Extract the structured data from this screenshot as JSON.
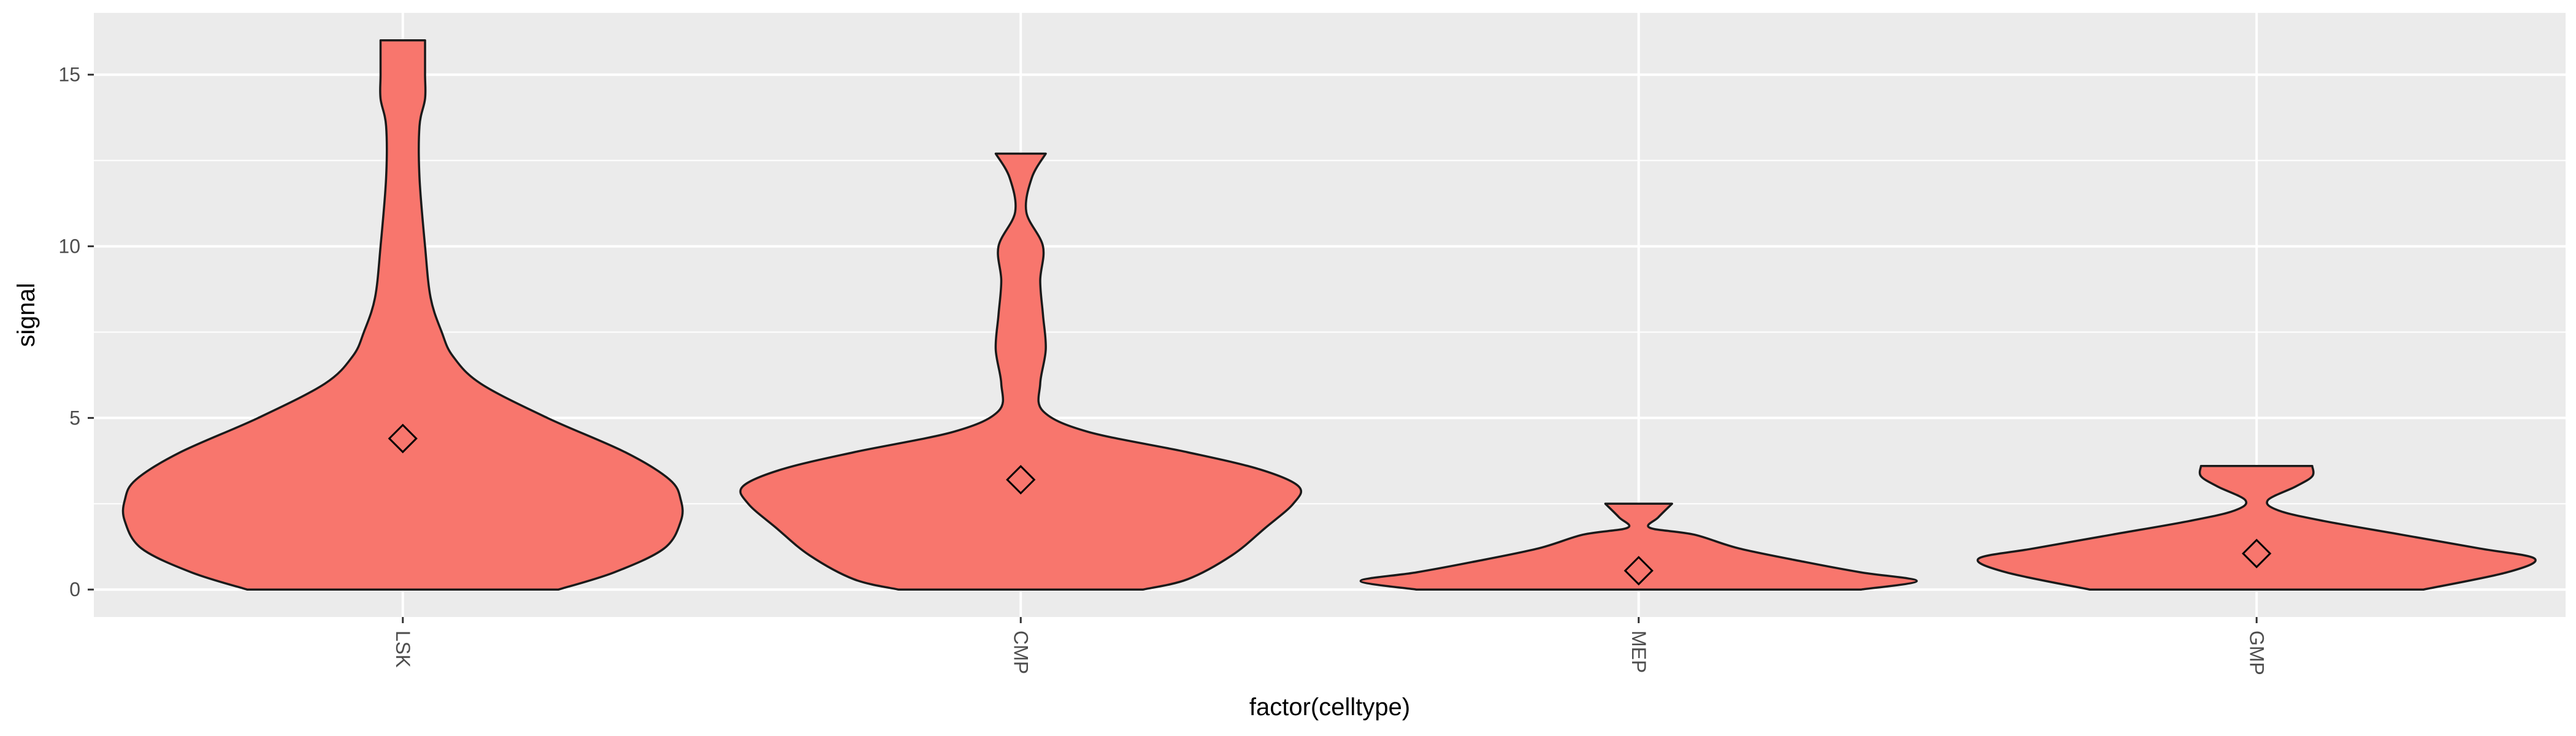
{
  "chart_data": {
    "type": "violin",
    "xlabel": "factor(celltype)",
    "ylabel": "signal",
    "categories": [
      "LSK",
      "CMP",
      "MEP",
      "GMP"
    ],
    "ylim": [
      -0.8,
      16.8
    ],
    "yticks": [
      0,
      5,
      10,
      15
    ],
    "grid": true,
    "colors": {
      "fill": "#F8766D",
      "outline": "#1a1a1a",
      "panel": "#EBEBEB",
      "grid": "#FFFFFF"
    },
    "series": [
      {
        "category": "LSK",
        "mean": 4.4,
        "profile": [
          [
            0,
            0.28
          ],
          [
            0.5,
            0.38
          ],
          [
            1.2,
            0.47
          ],
          [
            2.0,
            0.5
          ],
          [
            2.6,
            0.5
          ],
          [
            3.2,
            0.48
          ],
          [
            4.0,
            0.4
          ],
          [
            5.0,
            0.26
          ],
          [
            6.0,
            0.14
          ],
          [
            6.8,
            0.09
          ],
          [
            7.5,
            0.07
          ],
          [
            8.5,
            0.05
          ],
          [
            10.0,
            0.04
          ],
          [
            12.0,
            0.03
          ],
          [
            13.5,
            0.03
          ],
          [
            14.3,
            0.04
          ],
          [
            15.0,
            0.04
          ],
          [
            16.0,
            0.04
          ]
        ]
      },
      {
        "category": "CMP",
        "mean": 3.2,
        "profile": [
          [
            0,
            0.22
          ],
          [
            0.3,
            0.3
          ],
          [
            1.0,
            0.38
          ],
          [
            1.8,
            0.44
          ],
          [
            2.5,
            0.49
          ],
          [
            3.0,
            0.5
          ],
          [
            3.5,
            0.43
          ],
          [
            4.0,
            0.3
          ],
          [
            4.6,
            0.12
          ],
          [
            5.2,
            0.04
          ],
          [
            6.0,
            0.035
          ],
          [
            7.0,
            0.045
          ],
          [
            8.0,
            0.04
          ],
          [
            9.0,
            0.035
          ],
          [
            10.0,
            0.04
          ],
          [
            11.0,
            0.01
          ],
          [
            12.0,
            0.02
          ],
          [
            12.7,
            0.045
          ]
        ]
      },
      {
        "category": "MEP",
        "mean": 0.55,
        "profile": [
          [
            0,
            0.4
          ],
          [
            0.25,
            0.5
          ],
          [
            0.5,
            0.4
          ],
          [
            0.8,
            0.3
          ],
          [
            1.2,
            0.18
          ],
          [
            1.6,
            0.1
          ],
          [
            1.8,
            0.02
          ],
          [
            2.1,
            0.035
          ],
          [
            2.5,
            0.06
          ]
        ]
      },
      {
        "category": "GMP",
        "mean": 1.05,
        "profile": [
          [
            0,
            0.3
          ],
          [
            0.5,
            0.45
          ],
          [
            0.9,
            0.5
          ],
          [
            1.2,
            0.4
          ],
          [
            1.6,
            0.26
          ],
          [
            2.0,
            0.12
          ],
          [
            2.3,
            0.04
          ],
          [
            2.6,
            0.02
          ],
          [
            3.0,
            0.07
          ],
          [
            3.3,
            0.1
          ],
          [
            3.6,
            0.1
          ]
        ]
      }
    ]
  }
}
